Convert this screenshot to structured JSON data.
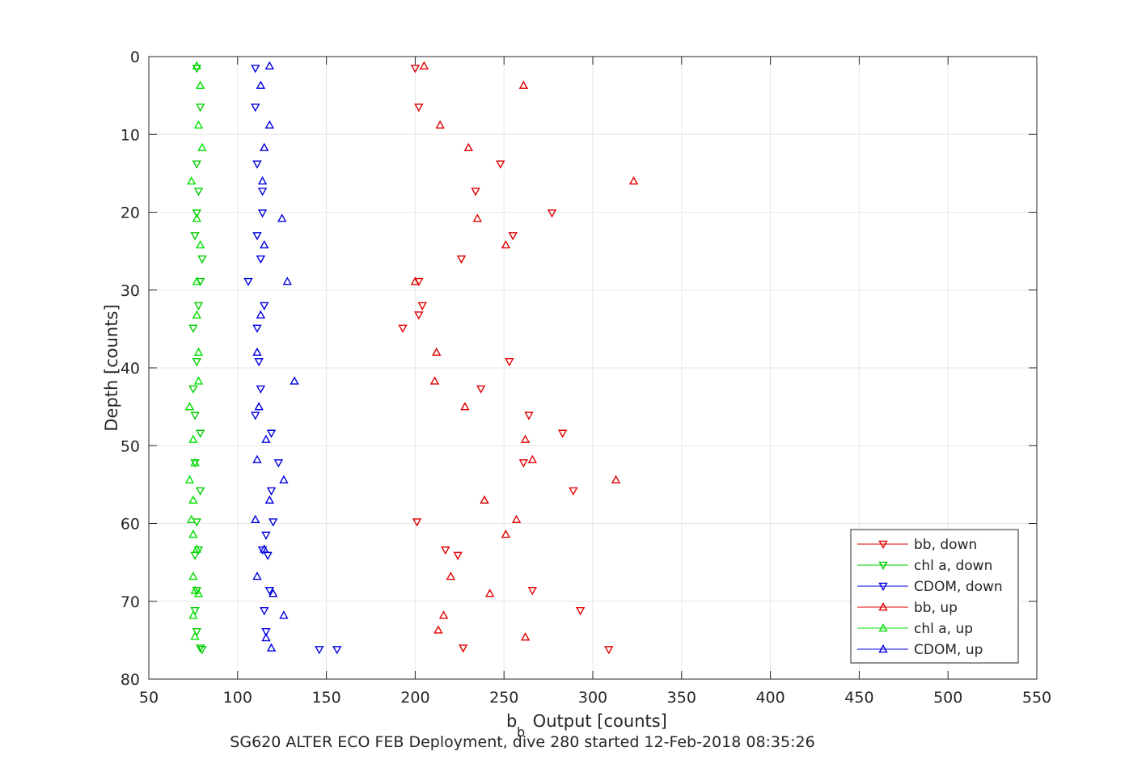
{
  "chart_data": {
    "type": "scatter",
    "xlabel_main": "b",
    "xlabel_sub": "b",
    "xlabel_rest": " Output [counts]",
    "ylabel": "Depth [counts]",
    "footer": "SG620 ALTER ECO FEB Deployment, dive 280 started 12-Feb-2018 08:35:26",
    "xlim": [
      50,
      550
    ],
    "ylim": [
      0,
      80
    ],
    "y_reversed": true,
    "grid": true,
    "legend_position": "bottom-right",
    "x_ticks": [
      "50",
      "100",
      "150",
      "200",
      "250",
      "300",
      "350",
      "400",
      "450",
      "500",
      "550"
    ],
    "y_ticks": [
      "0",
      "10",
      "20",
      "30",
      "40",
      "50",
      "60",
      "70",
      "80"
    ],
    "series": [
      {
        "name": "bb, down",
        "color": "#e00000",
        "marker": "triangle-down",
        "points": [
          [
            200,
            1.5
          ],
          [
            202,
            6.5
          ],
          [
            248,
            13.8
          ],
          [
            234,
            17.3
          ],
          [
            277,
            20.1
          ],
          [
            255,
            23
          ],
          [
            226,
            26
          ],
          [
            202,
            28.9
          ],
          [
            204,
            32
          ],
          [
            202,
            33.2
          ],
          [
            193,
            34.9
          ],
          [
            253,
            39.2
          ],
          [
            237,
            42.7
          ],
          [
            264,
            46.1
          ],
          [
            283,
            48.4
          ],
          [
            261,
            52.2
          ],
          [
            289,
            55.8
          ],
          [
            201,
            59.8
          ],
          [
            217,
            63.4
          ],
          [
            224,
            64.1
          ],
          [
            266,
            68.6
          ],
          [
            293,
            71.2
          ],
          [
            227,
            76
          ],
          [
            309,
            76.2
          ]
        ]
      },
      {
        "name": "chl a, down",
        "color": "#00cc00",
        "marker": "triangle-down",
        "points": [
          [
            77,
            1.5
          ],
          [
            79,
            6.5
          ],
          [
            77,
            13.8
          ],
          [
            78,
            17.3
          ],
          [
            77,
            20.1
          ],
          [
            76,
            23
          ],
          [
            80,
            26
          ],
          [
            79,
            28.9
          ],
          [
            78,
            32
          ],
          [
            75,
            34.9
          ],
          [
            77,
            39.2
          ],
          [
            75,
            42.7
          ],
          [
            76,
            46.1
          ],
          [
            79,
            48.4
          ],
          [
            76,
            52.2
          ],
          [
            79,
            55.8
          ],
          [
            77,
            59.8
          ],
          [
            78,
            63.4
          ],
          [
            76,
            64.1
          ],
          [
            77,
            68.6
          ],
          [
            76,
            71.2
          ],
          [
            77,
            73.9
          ],
          [
            79,
            76
          ],
          [
            80,
            76.2
          ]
        ]
      },
      {
        "name": "CDOM, down",
        "color": "#0000e0",
        "marker": "triangle-down",
        "points": [
          [
            110,
            1.5
          ],
          [
            110,
            6.5
          ],
          [
            111,
            13.8
          ],
          [
            114,
            17.3
          ],
          [
            114,
            20.1
          ],
          [
            111,
            23
          ],
          [
            113,
            26
          ],
          [
            106,
            28.9
          ],
          [
            115,
            32
          ],
          [
            111,
            34.9
          ],
          [
            112,
            39.2
          ],
          [
            113,
            42.7
          ],
          [
            110,
            46.1
          ],
          [
            119,
            48.4
          ],
          [
            123,
            52.2
          ],
          [
            119,
            55.8
          ],
          [
            120,
            59.8
          ],
          [
            116,
            61.5
          ],
          [
            114,
            63.4
          ],
          [
            117,
            64.1
          ],
          [
            118,
            68.6
          ],
          [
            115,
            71.2
          ],
          [
            116,
            73.9
          ],
          [
            146,
            76.2
          ],
          [
            156,
            76.2
          ]
        ]
      },
      {
        "name": "bb, up",
        "color": "#e00000",
        "marker": "triangle-up",
        "points": [
          [
            205,
            1.2
          ],
          [
            261,
            3.7
          ],
          [
            214,
            8.8
          ],
          [
            230,
            11.7
          ],
          [
            323,
            16
          ],
          [
            235,
            20.8
          ],
          [
            251,
            24.2
          ],
          [
            200,
            28.9
          ],
          [
            212,
            38
          ],
          [
            211,
            41.7
          ],
          [
            228,
            45
          ],
          [
            262,
            49.2
          ],
          [
            266,
            51.8
          ],
          [
            313,
            54.4
          ],
          [
            239,
            57
          ],
          [
            257,
            59.5
          ],
          [
            251,
            61.4
          ],
          [
            220,
            66.8
          ],
          [
            242,
            69
          ],
          [
            216,
            71.8
          ],
          [
            213,
            73.7
          ],
          [
            262,
            74.6
          ]
        ]
      },
      {
        "name": "chl a, up",
        "color": "#00e000",
        "marker": "triangle-up",
        "points": [
          [
            77,
            1.2
          ],
          [
            79,
            3.7
          ],
          [
            78,
            8.8
          ],
          [
            80,
            11.7
          ],
          [
            74,
            16
          ],
          [
            77,
            20.8
          ],
          [
            79,
            24.2
          ],
          [
            77,
            28.9
          ],
          [
            77,
            33.2
          ],
          [
            78,
            38
          ],
          [
            78,
            41.7
          ],
          [
            73,
            45
          ],
          [
            75,
            49.2
          ],
          [
            76,
            52.2
          ],
          [
            73,
            54.4
          ],
          [
            75,
            57
          ],
          [
            74,
            59.5
          ],
          [
            75,
            61.4
          ],
          [
            77,
            63.3
          ],
          [
            75,
            66.8
          ],
          [
            76,
            68.6
          ],
          [
            78,
            69
          ],
          [
            75,
            71.8
          ],
          [
            76,
            74.5
          ]
        ]
      },
      {
        "name": "CDOM, up",
        "color": "#0000e0",
        "marker": "triangle-up",
        "points": [
          [
            118,
            1.2
          ],
          [
            113,
            3.7
          ],
          [
            118,
            8.8
          ],
          [
            115,
            11.7
          ],
          [
            114,
            16
          ],
          [
            125,
            20.8
          ],
          [
            115,
            24.2
          ],
          [
            128,
            28.9
          ],
          [
            113,
            33.2
          ],
          [
            111,
            38
          ],
          [
            132,
            41.7
          ],
          [
            112,
            45
          ],
          [
            116,
            49.2
          ],
          [
            111,
            51.8
          ],
          [
            126,
            54.4
          ],
          [
            118,
            57
          ],
          [
            110,
            59.5
          ],
          [
            115,
            63.3
          ],
          [
            111,
            66.8
          ],
          [
            120,
            69
          ],
          [
            126,
            71.8
          ],
          [
            116,
            74.7
          ],
          [
            119,
            76
          ]
        ]
      }
    ]
  }
}
